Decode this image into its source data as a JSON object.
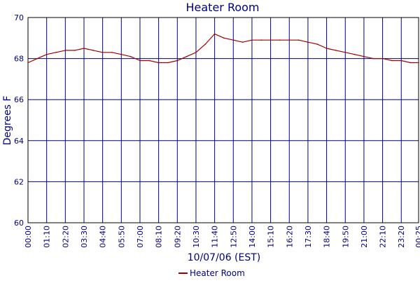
{
  "chart_data": {
    "type": "line",
    "title": "Heater Room",
    "xlabel": "10/07/06 (EST)",
    "ylabel": "Degrees F",
    "ylim": [
      60,
      70
    ],
    "yticks": [
      "60",
      "62",
      "64",
      "66",
      "68",
      "70"
    ],
    "xticks": [
      "00:00",
      "01:10",
      "02:20",
      "03:30",
      "04:40",
      "05:50",
      "07:00",
      "08:10",
      "09:20",
      "10:30",
      "11:40",
      "12:50",
      "14:00",
      "15:10",
      "16:20",
      "17:30",
      "18:40",
      "19:50",
      "21:00",
      "22:10",
      "23:20",
      "00:25"
    ],
    "grid": true,
    "legend_position": "bottom-center",
    "colors": {
      "series": "#a00000",
      "grid": "#000080",
      "text": "#000080",
      "axis": "#000000"
    },
    "series": [
      {
        "name": "Heater Room",
        "x": [
          "00:00",
          "00:35",
          "01:10",
          "01:45",
          "02:20",
          "02:55",
          "03:30",
          "04:05",
          "04:40",
          "05:15",
          "05:50",
          "06:25",
          "07:00",
          "07:35",
          "08:10",
          "08:45",
          "09:20",
          "09:55",
          "10:30",
          "11:05",
          "11:40",
          "12:15",
          "12:50",
          "13:25",
          "14:00",
          "14:35",
          "15:10",
          "15:45",
          "16:20",
          "16:55",
          "17:30",
          "18:05",
          "18:40",
          "19:15",
          "19:50",
          "20:25",
          "21:00",
          "21:35",
          "22:10",
          "22:45",
          "23:20",
          "23:55",
          "00:25"
        ],
        "values": [
          67.8,
          68.0,
          68.2,
          68.3,
          68.4,
          68.4,
          68.5,
          68.4,
          68.3,
          68.3,
          68.2,
          68.1,
          67.9,
          67.9,
          67.8,
          67.8,
          67.9,
          68.1,
          68.3,
          68.7,
          69.2,
          69.0,
          68.9,
          68.8,
          68.9,
          68.9,
          68.9,
          68.9,
          68.9,
          68.9,
          68.8,
          68.7,
          68.5,
          68.4,
          68.3,
          68.2,
          68.1,
          68.0,
          68.0,
          67.9,
          67.9,
          67.8,
          67.8
        ]
      }
    ]
  }
}
